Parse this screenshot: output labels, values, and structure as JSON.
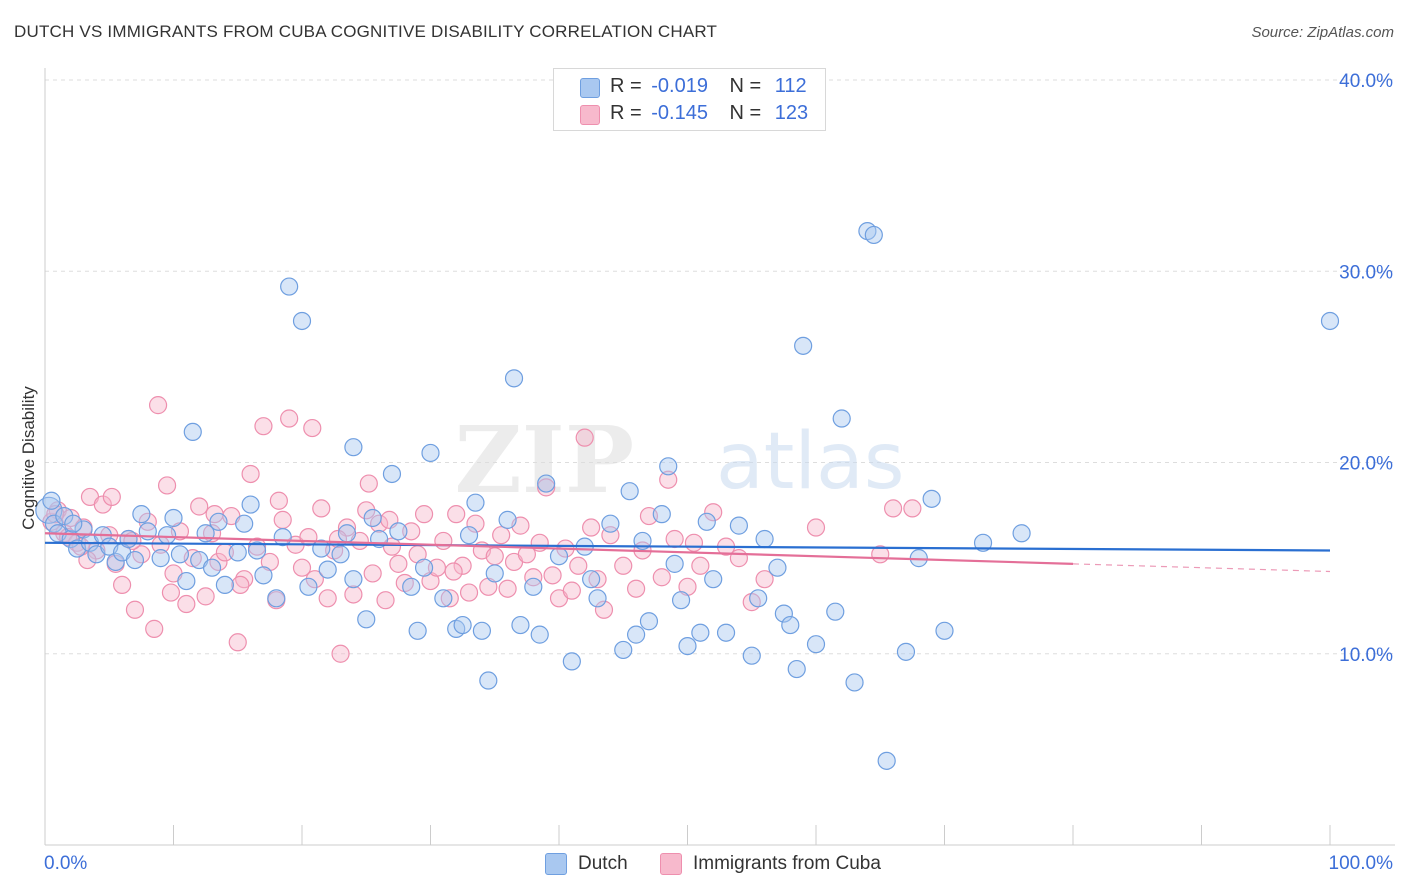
{
  "title": "DUTCH VS IMMIGRANTS FROM CUBA COGNITIVE DISABILITY CORRELATION CHART",
  "source": "Source: ZipAtlas.com",
  "colors": {
    "dutch_fill": "#a9c8f0",
    "dutch_stroke": "#6f9fe0",
    "dutch_line": "#2a6fd1",
    "cuba_fill": "#f7b9cc",
    "cuba_stroke": "#ee8fae",
    "cuba_line": "#e46f98",
    "axis_label": "#3c6ed8",
    "grid": "#dddddd"
  },
  "legend": {
    "r_label": "R =",
    "n_label": "N =",
    "dutch_r": "-0.019",
    "dutch_n": "112",
    "cuba_r": "-0.145",
    "cuba_n": "123"
  },
  "bottom_legend": {
    "dutch": "Dutch",
    "cuba": "Immigrants from Cuba"
  },
  "watermark": {
    "zip": "ZIP",
    "atlas": "atlas"
  },
  "chart_data": {
    "type": "scatter",
    "title": "DUTCH VS IMMIGRANTS FROM CUBA COGNITIVE DISABILITY CORRELATION CHART",
    "xlabel": "",
    "ylabel": "Cognitive Disability",
    "xlim": [
      0,
      100
    ],
    "ylim": [
      0,
      40
    ],
    "x_tick_labels": [
      "0.0%",
      "100.0%"
    ],
    "y_ticks": [
      10,
      20,
      30,
      40
    ],
    "y_tick_labels": [
      "10.0%",
      "20.0%",
      "30.0%",
      "40.0%"
    ],
    "grid": true,
    "legend_position": "top-center",
    "series": [
      {
        "name": "Dutch",
        "r": -0.019,
        "n": 112,
        "trend": {
          "x": [
            0,
            100
          ],
          "y": [
            15.8,
            15.4
          ]
        },
        "points": [
          [
            0.3,
            17.5
          ],
          [
            0.7,
            16.8
          ],
          [
            1.0,
            16.3
          ],
          [
            1.5,
            17.2
          ],
          [
            2.0,
            16.0
          ],
          [
            2.5,
            15.5
          ],
          [
            3.0,
            16.5
          ],
          [
            3.5,
            15.8
          ],
          [
            4.0,
            15.2
          ],
          [
            4.5,
            16.2
          ],
          [
            5.0,
            15.6
          ],
          [
            5.5,
            14.8
          ],
          [
            6.0,
            15.3
          ],
          [
            6.5,
            16.0
          ],
          [
            7.0,
            14.9
          ],
          [
            7.5,
            17.3
          ],
          [
            8.0,
            16.4
          ],
          [
            9.0,
            15.0
          ],
          [
            9.5,
            16.2
          ],
          [
            10.0,
            17.1
          ],
          [
            10.5,
            15.2
          ],
          [
            11.0,
            13.8
          ],
          [
            12.0,
            14.9
          ],
          [
            12.5,
            16.3
          ],
          [
            13.0,
            14.5
          ],
          [
            13.5,
            16.9
          ],
          [
            14.0,
            13.6
          ],
          [
            15.0,
            15.3
          ],
          [
            15.5,
            16.8
          ],
          [
            16.0,
            17.8
          ],
          [
            16.5,
            15.4
          ],
          [
            17.0,
            14.1
          ],
          [
            18.0,
            12.9
          ],
          [
            18.5,
            16.1
          ],
          [
            19.0,
            29.2
          ],
          [
            20.0,
            27.4
          ],
          [
            20.5,
            13.5
          ],
          [
            21.5,
            15.5
          ],
          [
            22.0,
            14.4
          ],
          [
            23.0,
            15.2
          ],
          [
            23.5,
            16.3
          ],
          [
            24.0,
            13.9
          ],
          [
            25.0,
            11.8
          ],
          [
            25.5,
            17.1
          ],
          [
            26.0,
            16.0
          ],
          [
            27.0,
            19.4
          ],
          [
            27.5,
            16.4
          ],
          [
            28.5,
            13.5
          ],
          [
            29.0,
            11.2
          ],
          [
            29.5,
            14.5
          ],
          [
            30.0,
            20.5
          ],
          [
            31.0,
            12.9
          ],
          [
            32.0,
            11.3
          ],
          [
            32.5,
            11.5
          ],
          [
            33.0,
            16.2
          ],
          [
            33.5,
            17.9
          ],
          [
            34.0,
            11.2
          ],
          [
            35.0,
            14.2
          ],
          [
            36.0,
            17.0
          ],
          [
            36.5,
            24.4
          ],
          [
            37.0,
            11.5
          ],
          [
            38.0,
            13.5
          ],
          [
            38.5,
            11.0
          ],
          [
            39.0,
            18.9
          ],
          [
            40.0,
            15.1
          ],
          [
            41.0,
            9.6
          ],
          [
            42.0,
            15.6
          ],
          [
            42.5,
            13.9
          ],
          [
            43.0,
            12.9
          ],
          [
            44.0,
            16.8
          ],
          [
            45.0,
            10.2
          ],
          [
            45.5,
            18.5
          ],
          [
            46.0,
            11.0
          ],
          [
            46.5,
            15.9
          ],
          [
            47.0,
            11.7
          ],
          [
            48.0,
            17.3
          ],
          [
            48.5,
            19.8
          ],
          [
            49.0,
            14.7
          ],
          [
            49.5,
            12.8
          ],
          [
            50.0,
            10.4
          ],
          [
            51.0,
            11.1
          ],
          [
            51.5,
            16.9
          ],
          [
            52.0,
            13.9
          ],
          [
            53.0,
            11.1
          ],
          [
            54.0,
            16.7
          ],
          [
            55.0,
            9.9
          ],
          [
            55.5,
            12.9
          ],
          [
            56.0,
            16.0
          ],
          [
            57.0,
            14.5
          ],
          [
            57.5,
            12.1
          ],
          [
            58.0,
            11.5
          ],
          [
            58.5,
            9.2
          ],
          [
            59.0,
            26.1
          ],
          [
            60.0,
            10.5
          ],
          [
            61.5,
            12.2
          ],
          [
            62.0,
            22.3
          ],
          [
            63.0,
            8.5
          ],
          [
            64.0,
            32.1
          ],
          [
            64.5,
            31.9
          ],
          [
            65.5,
            4.4
          ],
          [
            67.0,
            10.1
          ],
          [
            68.0,
            15.0
          ],
          [
            69.0,
            18.1
          ],
          [
            70.0,
            11.2
          ],
          [
            73.0,
            15.8
          ],
          [
            76.0,
            16.3
          ],
          [
            100.0,
            27.4
          ],
          [
            0.5,
            18.0
          ],
          [
            2.2,
            16.8
          ],
          [
            11.5,
            21.6
          ],
          [
            24.0,
            20.8
          ],
          [
            34.5,
            8.6
          ]
        ]
      },
      {
        "name": "Immigrants from Cuba",
        "r": -0.145,
        "n": 123,
        "trend": {
          "x": [
            0,
            80
          ],
          "y": [
            16.3,
            14.7
          ],
          "dashed_to": {
            "x": 100,
            "y": 14.3
          }
        },
        "points": [
          [
            0.5,
            16.9
          ],
          [
            1.0,
            17.5
          ],
          [
            1.5,
            16.3
          ],
          [
            2.0,
            17.1
          ],
          [
            2.5,
            15.8
          ],
          [
            3.0,
            16.6
          ],
          [
            3.5,
            18.2
          ],
          [
            4.0,
            15.4
          ],
          [
            4.5,
            17.8
          ],
          [
            5.0,
            16.2
          ],
          [
            5.5,
            14.7
          ],
          [
            6.0,
            13.6
          ],
          [
            6.5,
            16.0
          ],
          [
            7.0,
            12.3
          ],
          [
            7.5,
            15.2
          ],
          [
            8.0,
            16.9
          ],
          [
            8.5,
            11.3
          ],
          [
            9.0,
            15.7
          ],
          [
            9.5,
            18.8
          ],
          [
            10.0,
            14.2
          ],
          [
            10.5,
            16.4
          ],
          [
            11.0,
            12.6
          ],
          [
            11.5,
            15.0
          ],
          [
            12.0,
            17.7
          ],
          [
            12.5,
            13.0
          ],
          [
            13.0,
            16.3
          ],
          [
            13.5,
            14.8
          ],
          [
            14.0,
            15.3
          ],
          [
            14.5,
            17.2
          ],
          [
            15.0,
            10.6
          ],
          [
            15.5,
            13.9
          ],
          [
            16.0,
            19.4
          ],
          [
            16.5,
            15.6
          ],
          [
            17.0,
            21.9
          ],
          [
            17.5,
            14.8
          ],
          [
            18.0,
            12.8
          ],
          [
            18.5,
            17.0
          ],
          [
            19.0,
            22.3
          ],
          [
            19.5,
            15.7
          ],
          [
            20.0,
            14.5
          ],
          [
            20.5,
            16.1
          ],
          [
            21.0,
            13.9
          ],
          [
            21.5,
            17.6
          ],
          [
            22.0,
            12.9
          ],
          [
            22.5,
            15.4
          ],
          [
            23.0,
            10.0
          ],
          [
            23.5,
            16.6
          ],
          [
            24.0,
            13.1
          ],
          [
            24.5,
            15.9
          ],
          [
            25.0,
            17.5
          ],
          [
            25.5,
            14.2
          ],
          [
            26.0,
            16.8
          ],
          [
            26.5,
            12.8
          ],
          [
            27.0,
            15.6
          ],
          [
            27.5,
            14.7
          ],
          [
            28.0,
            13.7
          ],
          [
            28.5,
            16.4
          ],
          [
            29.0,
            15.2
          ],
          [
            29.5,
            17.3
          ],
          [
            30.0,
            13.8
          ],
          [
            30.5,
            14.5
          ],
          [
            31.0,
            15.9
          ],
          [
            31.5,
            12.9
          ],
          [
            32.0,
            17.3
          ],
          [
            32.5,
            14.6
          ],
          [
            33.0,
            13.2
          ],
          [
            33.5,
            16.8
          ],
          [
            34.0,
            15.4
          ],
          [
            34.5,
            13.5
          ],
          [
            35.0,
            15.1
          ],
          [
            35.5,
            16.2
          ],
          [
            36.0,
            13.4
          ],
          [
            36.5,
            14.8
          ],
          [
            37.0,
            16.7
          ],
          [
            37.5,
            15.2
          ],
          [
            38.0,
            14.0
          ],
          [
            38.5,
            15.8
          ],
          [
            39.0,
            18.7
          ],
          [
            39.5,
            14.1
          ],
          [
            40.0,
            12.9
          ],
          [
            40.5,
            15.5
          ],
          [
            41.0,
            13.3
          ],
          [
            41.5,
            14.6
          ],
          [
            42.0,
            21.3
          ],
          [
            42.5,
            16.6
          ],
          [
            43.0,
            13.9
          ],
          [
            43.5,
            12.3
          ],
          [
            44.0,
            16.2
          ],
          [
            45.0,
            14.6
          ],
          [
            46.0,
            13.4
          ],
          [
            46.5,
            15.4
          ],
          [
            47.0,
            17.2
          ],
          [
            48.0,
            14.0
          ],
          [
            48.5,
            19.1
          ],
          [
            49.0,
            16.0
          ],
          [
            50.0,
            13.5
          ],
          [
            50.5,
            15.8
          ],
          [
            51.0,
            14.6
          ],
          [
            52.0,
            17.4
          ],
          [
            53.0,
            15.6
          ],
          [
            54.0,
            15.0
          ],
          [
            55.0,
            12.7
          ],
          [
            56.0,
            13.9
          ],
          [
            60.0,
            16.6
          ],
          [
            65.0,
            15.2
          ],
          [
            66.0,
            17.6
          ],
          [
            67.5,
            17.6
          ],
          [
            3.3,
            14.9
          ],
          [
            5.2,
            18.2
          ],
          [
            8.8,
            23.0
          ],
          [
            13.2,
            17.3
          ],
          [
            18.2,
            18.0
          ],
          [
            20.8,
            21.8
          ],
          [
            25.2,
            18.9
          ],
          [
            0.8,
            17.3
          ],
          [
            1.8,
            16.1
          ],
          [
            2.8,
            15.6
          ],
          [
            6.8,
            15.9
          ],
          [
            9.8,
            13.2
          ],
          [
            15.2,
            13.6
          ],
          [
            22.8,
            16.0
          ],
          [
            26.8,
            17.0
          ],
          [
            31.8,
            14.3
          ]
        ]
      }
    ]
  }
}
